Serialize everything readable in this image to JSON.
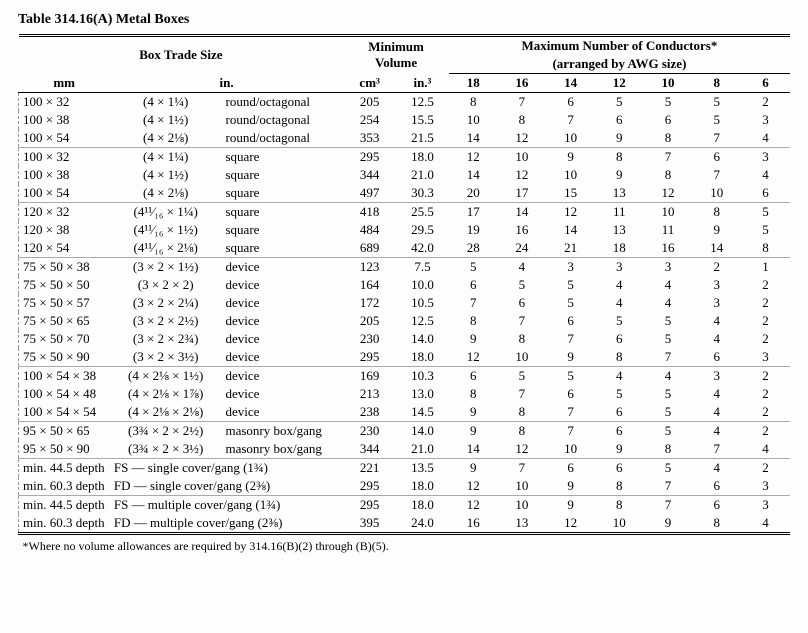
{
  "title": "Table 314.16(A)  Metal Boxes",
  "footnote": "*Where no volume allowances are required by 314.16(B)(2) through (B)(5).",
  "headers": {
    "boxTrade": "Box Trade Size",
    "minVol": "Minimum Volume",
    "maxCond": "Maximum Number of Conductors*",
    "maxCondSub": "(arranged by AWG size)",
    "mm": "mm",
    "in": "in.",
    "cm3": "cm³",
    "in3": "in.³",
    "awg": [
      "18",
      "16",
      "14",
      "12",
      "10",
      "8",
      "6"
    ]
  },
  "groups": [
    [
      {
        "mm": "100 × 32",
        "in": "(4 × 1¼)",
        "shape": "round/octagonal",
        "cm3": "205",
        "in3": "12.5",
        "n": [
          "8",
          "7",
          "6",
          "5",
          "5",
          "5",
          "2"
        ]
      },
      {
        "mm": "100 × 38",
        "in": "(4 × 1½)",
        "shape": "round/octagonal",
        "cm3": "254",
        "in3": "15.5",
        "n": [
          "10",
          "8",
          "7",
          "6",
          "6",
          "5",
          "3"
        ]
      },
      {
        "mm": "100 × 54",
        "in": "(4 × 2⅛)",
        "shape": "round/octagonal",
        "cm3": "353",
        "in3": "21.5",
        "n": [
          "14",
          "12",
          "10",
          "9",
          "8",
          "7",
          "4"
        ]
      }
    ],
    [
      {
        "mm": "100 × 32",
        "in": "(4 × 1¼)",
        "shape": "square",
        "cm3": "295",
        "in3": "18.0",
        "n": [
          "12",
          "10",
          "9",
          "8",
          "7",
          "6",
          "3"
        ]
      },
      {
        "mm": "100 × 38",
        "in": "(4 × 1½)",
        "shape": "square",
        "cm3": "344",
        "in3": "21.0",
        "n": [
          "14",
          "12",
          "10",
          "9",
          "8",
          "7",
          "4"
        ]
      },
      {
        "mm": "100 × 54",
        "in": "(4 × 2⅛)",
        "shape": "square",
        "cm3": "497",
        "in3": "30.3",
        "n": [
          "20",
          "17",
          "15",
          "13",
          "12",
          "10",
          "6"
        ]
      }
    ],
    [
      {
        "mm": "120 × 32",
        "in": "(4¹¹⁄₁₆ × 1¼)",
        "shape": "square",
        "cm3": "418",
        "in3": "25.5",
        "n": [
          "17",
          "14",
          "12",
          "11",
          "10",
          "8",
          "5"
        ]
      },
      {
        "mm": "120 × 38",
        "in": "(4¹¹⁄₁₆ × 1½)",
        "shape": "square",
        "cm3": "484",
        "in3": "29.5",
        "n": [
          "19",
          "16",
          "14",
          "13",
          "11",
          "9",
          "5"
        ]
      },
      {
        "mm": "120 × 54",
        "in": "(4¹¹⁄₁₆ × 2⅛)",
        "shape": "square",
        "cm3": "689",
        "in3": "42.0",
        "n": [
          "28",
          "24",
          "21",
          "18",
          "16",
          "14",
          "8"
        ]
      }
    ],
    [
      {
        "mm": "75 × 50 × 38",
        "in": "(3 × 2 × 1½)",
        "shape": "device",
        "cm3": "123",
        "in3": "7.5",
        "n": [
          "5",
          "4",
          "3",
          "3",
          "3",
          "2",
          "1"
        ]
      },
      {
        "mm": "75 × 50 × 50",
        "in": "(3 × 2 × 2)",
        "shape": "device",
        "cm3": "164",
        "in3": "10.0",
        "n": [
          "6",
          "5",
          "5",
          "4",
          "4",
          "3",
          "2"
        ]
      },
      {
        "mm": "75 × 50 × 57",
        "in": "(3 × 2 × 2¼)",
        "shape": "device",
        "cm3": "172",
        "in3": "10.5",
        "n": [
          "7",
          "6",
          "5",
          "4",
          "4",
          "3",
          "2"
        ]
      },
      {
        "mm": "75 × 50 × 65",
        "in": "(3 × 2 × 2½)",
        "shape": "device",
        "cm3": "205",
        "in3": "12.5",
        "n": [
          "8",
          "7",
          "6",
          "5",
          "5",
          "4",
          "2"
        ]
      },
      {
        "mm": "75 × 50 × 70",
        "in": "(3 × 2 × 2¾)",
        "shape": "device",
        "cm3": "230",
        "in3": "14.0",
        "n": [
          "9",
          "8",
          "7",
          "6",
          "5",
          "4",
          "2"
        ]
      },
      {
        "mm": "75 × 50 × 90",
        "in": "(3 × 2 × 3½)",
        "shape": "device",
        "cm3": "295",
        "in3": "18.0",
        "n": [
          "12",
          "10",
          "9",
          "8",
          "7",
          "6",
          "3"
        ]
      }
    ],
    [
      {
        "mm": "100 × 54 × 38",
        "in": "(4 × 2⅛ × 1½)",
        "shape": "device",
        "cm3": "169",
        "in3": "10.3",
        "n": [
          "6",
          "5",
          "5",
          "4",
          "4",
          "3",
          "2"
        ]
      },
      {
        "mm": "100 × 54 × 48",
        "in": "(4 × 2⅛ × 1⅞)",
        "shape": "device",
        "cm3": "213",
        "in3": "13.0",
        "n": [
          "8",
          "7",
          "6",
          "5",
          "5",
          "4",
          "2"
        ]
      },
      {
        "mm": "100 × 54 × 54",
        "in": "(4 × 2⅛ × 2⅛)",
        "shape": "device",
        "cm3": "238",
        "in3": "14.5",
        "n": [
          "9",
          "8",
          "7",
          "6",
          "5",
          "4",
          "2"
        ]
      }
    ],
    [
      {
        "mm": "95 × 50 × 65",
        "in": "(3¾ × 2 × 2½)",
        "shape": "masonry box/gang",
        "cm3": "230",
        "in3": "14.0",
        "n": [
          "9",
          "8",
          "7",
          "6",
          "5",
          "4",
          "2"
        ]
      },
      {
        "mm": "95 × 50 × 90",
        "in": "(3¾ × 2 × 3½)",
        "shape": "masonry box/gang",
        "cm3": "344",
        "in3": "21.0",
        "n": [
          "14",
          "12",
          "10",
          "9",
          "8",
          "7",
          "4"
        ]
      }
    ],
    [
      {
        "mm": "min. 44.5 depth",
        "in": "FS — single cover/gang (1¾)",
        "shape": "",
        "cm3": "221",
        "in3": "13.5",
        "n": [
          "9",
          "7",
          "6",
          "6",
          "5",
          "4",
          "2"
        ]
      },
      {
        "mm": "min. 60.3 depth",
        "in": "FD — single cover/gang (2⅜)",
        "shape": "",
        "cm3": "295",
        "in3": "18.0",
        "n": [
          "12",
          "10",
          "9",
          "8",
          "7",
          "6",
          "3"
        ]
      }
    ],
    [
      {
        "mm": "min. 44.5 depth",
        "in": "FS — multiple cover/gang (1¾)",
        "shape": "",
        "cm3": "295",
        "in3": "18.0",
        "n": [
          "12",
          "10",
          "9",
          "8",
          "7",
          "6",
          "3"
        ]
      },
      {
        "mm": "min. 60.3 depth",
        "in": "FD — multiple cover/gang (2⅜)",
        "shape": "",
        "cm3": "395",
        "in3": "24.0",
        "n": [
          "16",
          "13",
          "12",
          "10",
          "9",
          "8",
          "4"
        ]
      }
    ]
  ]
}
